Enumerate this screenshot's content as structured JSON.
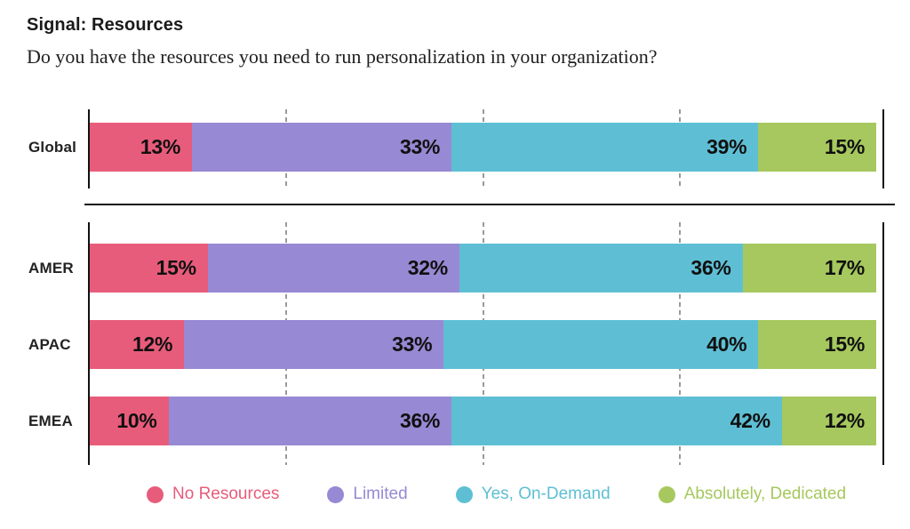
{
  "chart_data": {
    "type": "bar",
    "orientation": "horizontal",
    "stacked": true,
    "title": "Signal: Resources",
    "subtitle": "Do you have the resources you need to run personalization in your organization?",
    "categories": [
      "Global",
      "AMER",
      "APAC",
      "EMEA"
    ],
    "series": [
      {
        "name": "No Resources",
        "color": "#E85C7B",
        "values": [
          13,
          15,
          12,
          10
        ]
      },
      {
        "name": "Limited",
        "color": "#9789D3",
        "values": [
          33,
          32,
          33,
          36
        ]
      },
      {
        "name": "Yes, On-Demand",
        "color": "#5EBFD4",
        "values": [
          39,
          36,
          40,
          42
        ]
      },
      {
        "name": "Absolutely, Dedicated",
        "color": "#A6C85E",
        "values": [
          15,
          17,
          15,
          12
        ]
      }
    ],
    "value_suffix": "%",
    "xlim": [
      0,
      100
    ],
    "gridlines_pct": [
      25,
      50,
      75
    ],
    "grid": "dashed-vertical",
    "legend_position": "bottom",
    "axis_color": "#111111",
    "gridline_color": "#999999",
    "value_label_color": "#101010",
    "layout_note": "Global row plotted separately above a divider; AMER/APAC/EMEA grouped below"
  }
}
